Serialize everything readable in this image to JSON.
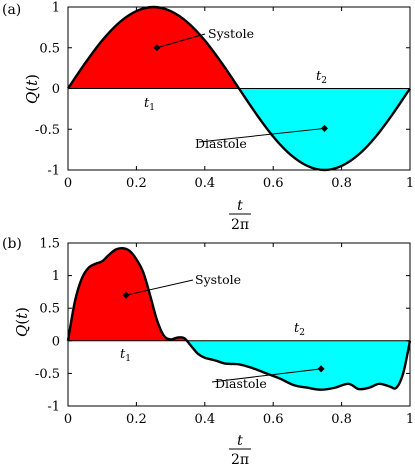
{
  "panels": [
    {
      "panel_label": "(a)",
      "y_label_symbol": "Q",
      "y_label_arg": "t",
      "x_label_num": "t",
      "x_label_den": "2π",
      "annotations": {
        "upper": "Systole",
        "lower": "Diastole"
      },
      "segment_labels": {
        "first": "t",
        "first_sub": "1",
        "second": "t",
        "second_sub": "2"
      },
      "x_ticks": [
        "0",
        "0.2",
        "0.4",
        "0.6",
        "0.8",
        "1"
      ],
      "y_ticks": [
        "1",
        "0.5",
        "0",
        "-0.5",
        "-1"
      ]
    },
    {
      "panel_label": "(b)",
      "y_label_symbol": "Q",
      "y_label_arg": "t",
      "x_label_num": "t",
      "x_label_den": "2π",
      "annotations": {
        "upper": "Systole",
        "lower": "Diastole"
      },
      "segment_labels": {
        "first": "t",
        "first_sub": "1",
        "second": "t",
        "second_sub": "2"
      },
      "x_ticks": [
        "0",
        "0.2",
        "0.4",
        "0.6",
        "0.8",
        "1"
      ],
      "y_ticks": [
        "1.5",
        "1",
        "0.5",
        "0",
        "-0.5",
        "-1"
      ]
    }
  ],
  "colors": {
    "systole_fill": "#ff0000",
    "diastole_fill": "#00ffff",
    "curve": "#000000"
  },
  "chart_data": [
    {
      "type": "area",
      "grid": false,
      "xlim": [
        0,
        1
      ],
      "ylim": [
        -1,
        1
      ],
      "x": [
        0,
        0.05,
        0.1,
        0.15,
        0.2,
        0.25,
        0.3,
        0.35,
        0.4,
        0.45,
        0.5,
        0.55,
        0.6,
        0.65,
        0.7,
        0.75,
        0.8,
        0.85,
        0.9,
        0.95,
        1
      ],
      "y": [
        0,
        0.31,
        0.59,
        0.81,
        0.95,
        1,
        0.95,
        0.81,
        0.59,
        0.31,
        0,
        -0.31,
        -0.59,
        -0.81,
        -0.95,
        -1,
        -0.95,
        -0.81,
        -0.59,
        -0.31,
        0
      ],
      "markers": [
        {
          "x": 0.26,
          "y": 0.5,
          "label": "Systole"
        },
        {
          "x": 0.75,
          "y": -0.49,
          "label": "Diastole"
        }
      ]
    },
    {
      "type": "area",
      "grid": false,
      "xlim": [
        0,
        1
      ],
      "ylim": [
        -1,
        1.5
      ],
      "x": [
        0,
        0.02,
        0.04,
        0.06,
        0.08,
        0.1,
        0.12,
        0.14,
        0.16,
        0.18,
        0.2,
        0.22,
        0.24,
        0.26,
        0.28,
        0.3,
        0.32,
        0.34,
        0.36,
        0.38,
        0.4,
        0.43,
        0.46,
        0.5,
        0.54,
        0.58,
        0.62,
        0.66,
        0.7,
        0.74,
        0.78,
        0.82,
        0.85,
        0.88,
        0.91,
        0.94,
        0.96,
        0.98,
        1
      ],
      "y": [
        0,
        0.6,
        0.95,
        1.12,
        1.18,
        1.22,
        1.32,
        1.4,
        1.42,
        1.38,
        1.25,
        1.05,
        0.7,
        0.32,
        0.08,
        0.02,
        0.05,
        0.04,
        -0.08,
        -0.2,
        -0.26,
        -0.3,
        -0.35,
        -0.36,
        -0.42,
        -0.5,
        -0.58,
        -0.68,
        -0.72,
        -0.75,
        -0.72,
        -0.66,
        -0.74,
        -0.72,
        -0.66,
        -0.7,
        -0.72,
        -0.5,
        0
      ],
      "markers": [
        {
          "x": 0.17,
          "y": 0.7,
          "label": "Systole"
        },
        {
          "x": 0.74,
          "y": -0.43,
          "label": "Diastole"
        }
      ]
    }
  ]
}
